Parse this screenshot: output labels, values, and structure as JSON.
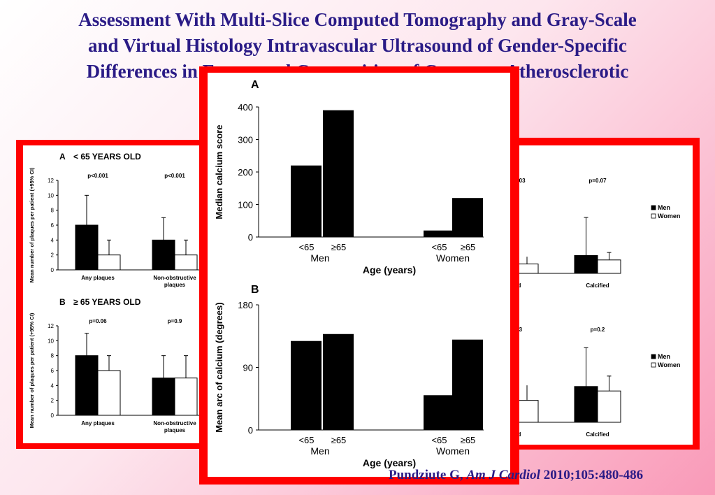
{
  "title_lines": [
    "Assessment With Multi-Slice Computed Tomography and Gray-Scale",
    "and Virtual Histology Intravascular Ultrasound of Gender-Specific",
    "Differences in Extent and Composition of Coronary Atherosclerotic"
  ],
  "citation": {
    "author": "Pundziute G,",
    "journal": "Am J Cardiol",
    "ref": "2010;105:480-486"
  },
  "colors": {
    "frame": "#ff0000",
    "title": "#2a1b86",
    "bar_men": "#000000",
    "bar_women": "#ffffff"
  },
  "chart_data": [
    {
      "id": "left-A",
      "type": "bar",
      "panel_label": "A",
      "title": "< 65 YEARS OLD",
      "ylabel": "Mean number of plaques per patient (+95% CI)",
      "ylim": [
        0,
        12
      ],
      "yticks": [
        0,
        2,
        4,
        6,
        8,
        10,
        12
      ],
      "categories": [
        "Any plaques",
        "Non-obstructive plaques"
      ],
      "pvalues": [
        "p<0.001",
        "p<0.001"
      ],
      "series": [
        {
          "name": "Men",
          "values": [
            6,
            4
          ],
          "upper": [
            10,
            7
          ]
        },
        {
          "name": "Women",
          "values": [
            2,
            2
          ],
          "upper": [
            4,
            4
          ]
        }
      ]
    },
    {
      "id": "left-B",
      "type": "bar",
      "panel_label": "B",
      "title": "≥ 65 YEARS OLD",
      "ylabel": "Mean number of plaques per patient (+95% CI)",
      "ylim": [
        0,
        12
      ],
      "yticks": [
        0,
        2,
        4,
        6,
        8,
        10,
        12
      ],
      "categories": [
        "Any plaques",
        "Non-obstructive plaques"
      ],
      "pvalues": [
        "p=0.06",
        "p=0.9"
      ],
      "series": [
        {
          "name": "Men",
          "values": [
            8,
            5
          ],
          "upper": [
            11,
            8
          ]
        },
        {
          "name": "Women",
          "values": [
            6,
            5
          ],
          "upper": [
            8,
            8
          ]
        }
      ]
    },
    {
      "id": "center-A",
      "type": "bar",
      "panel_label": "A",
      "ylabel": "Median calcium score",
      "xlabel": "Age (years)",
      "ylim": [
        0,
        400
      ],
      "yticks": [
        0,
        100,
        200,
        300,
        400
      ],
      "categories": [
        "<65",
        "≥65",
        "<65",
        "≥65"
      ],
      "groups": [
        "Men",
        "Women"
      ],
      "values": [
        220,
        390,
        20,
        120
      ]
    },
    {
      "id": "center-B",
      "type": "bar",
      "panel_label": "B",
      "ylabel": "Mean arc of calcium (degrees)",
      "xlabel": "Age (years)",
      "ylim": [
        0,
        180
      ],
      "yticks": [
        0,
        90,
        180
      ],
      "categories": [
        "<65",
        "≥65",
        "<65",
        "≥65"
      ],
      "groups": [
        "Men",
        "Women"
      ],
      "values": [
        128,
        138,
        50,
        130
      ]
    },
    {
      "id": "right-A",
      "type": "bar",
      "categories": [
        "Calcified"
      ],
      "visible_partial_labels": {
        "pvalue": ".003",
        "category": "ed"
      },
      "pvalues": [
        "p=0.07"
      ],
      "legend": [
        "Men",
        "Women"
      ],
      "series": [
        {
          "name": "Men",
          "values": [
            2.4
          ],
          "upper": [
            7.5
          ]
        },
        {
          "name": "Women",
          "values": [
            1.8
          ],
          "upper": [
            2.8
          ]
        }
      ]
    },
    {
      "id": "right-B",
      "type": "bar",
      "categories": [
        "Calcified"
      ],
      "visible_partial_labels": {
        "pvalue": "0.3",
        "category": "ed"
      },
      "pvalues": [
        "p=0.2"
      ],
      "legend": [
        "Men",
        "Women"
      ],
      "series": [
        {
          "name": "Men",
          "values": [
            4.8
          ],
          "upper": [
            10
          ]
        },
        {
          "name": "Women",
          "values": [
            4.2
          ],
          "upper": [
            6.2
          ]
        }
      ]
    }
  ]
}
